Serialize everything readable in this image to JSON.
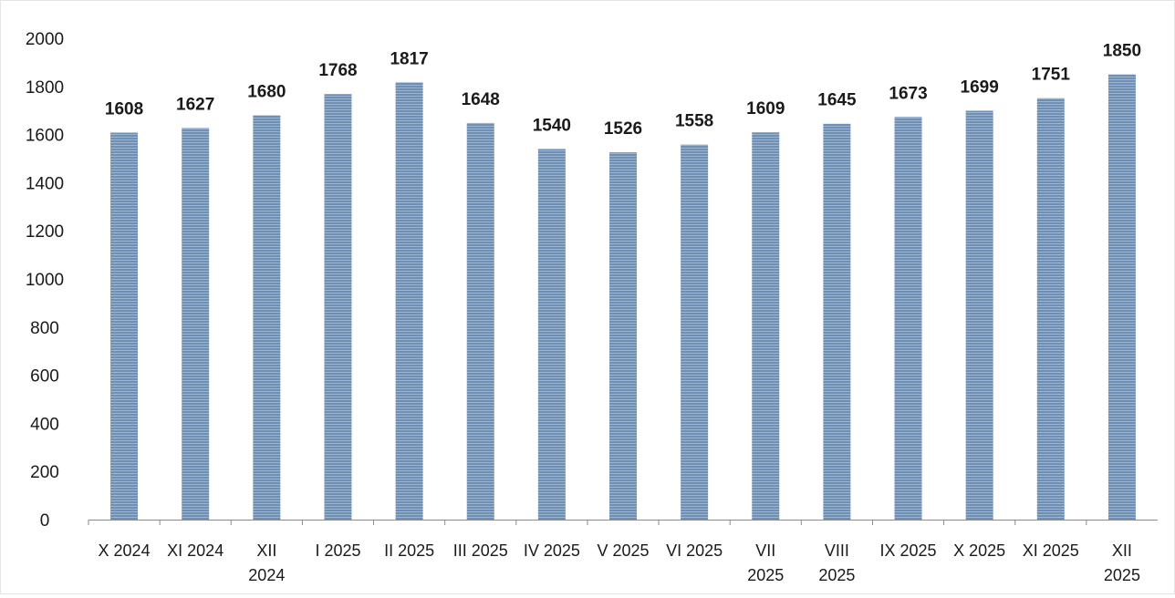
{
  "chart_data": {
    "type": "bar",
    "categories": [
      [
        "X 2024"
      ],
      [
        "XI 2024"
      ],
      [
        "XII",
        "2024"
      ],
      [
        "I 2025"
      ],
      [
        "II 2025"
      ],
      [
        "III 2025"
      ],
      [
        "IV 2025"
      ],
      [
        "V 2025"
      ],
      [
        "VI 2025"
      ],
      [
        "VII",
        "2025"
      ],
      [
        "VIII",
        "2025"
      ],
      [
        "IX 2025"
      ],
      [
        "X 2025"
      ],
      [
        "XI 2025"
      ],
      [
        "XII",
        "2025"
      ]
    ],
    "values": [
      1608,
      1627,
      1680,
      1768,
      1817,
      1648,
      1540,
      1526,
      1558,
      1609,
      1645,
      1673,
      1699,
      1751,
      1850
    ],
    "yticks": [
      0,
      200,
      400,
      600,
      800,
      1000,
      1200,
      1400,
      1600,
      1800,
      2000
    ],
    "ylim": [
      0,
      2000
    ],
    "xlabel": "",
    "ylabel": "",
    "title": "",
    "grid": false,
    "legend": "none",
    "colors": {
      "bar_fill": "#6f8fb4",
      "bar_stripe": "#9db4cf",
      "axis": "#8a8a8a"
    }
  }
}
